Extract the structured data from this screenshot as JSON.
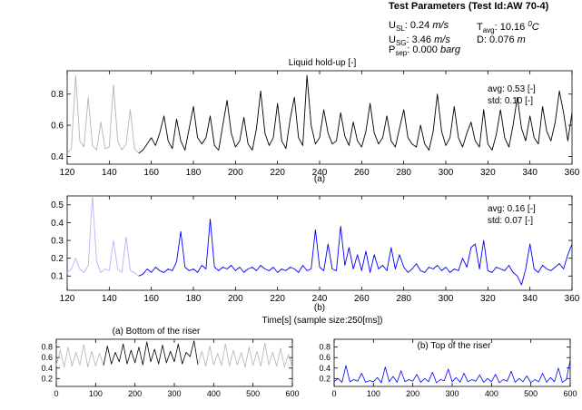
{
  "params": {
    "title": "Test Parameters (Test Id:AW 70-4)",
    "usl_label": "U",
    "usl_sub": "SL",
    "usl_value": ": 0.24",
    "usl_unit": "m/s",
    "usg_label": "U",
    "usg_sub": "SG",
    "usg_value": ": 3.46",
    "usg_unit": "m/s",
    "psep_label": "P",
    "psep_sub": "sep",
    "psep_value": ": 0.000",
    "psep_unit": "barg",
    "tavg_label": "T",
    "tavg_sub": "avg",
    "tavg_value": ": 10.16",
    "tavg_sup": "0",
    "tavg_unit": "C",
    "d_label": "D: 0.076",
    "d_unit": "m"
  },
  "xlabel_main": "Time[s] (sample size:250[ms])",
  "colors": {
    "black_series": "#000000",
    "blue_series": "#0000ff",
    "light_black": "#b4b4b4",
    "light_blue": "#b4b4ff"
  },
  "chart_data": [
    {
      "id": "a",
      "type": "line",
      "title": "Liquid hold-up [-]",
      "caption": "(a)",
      "xlim": [
        120,
        360
      ],
      "ylim": [
        0.35,
        0.95
      ],
      "xticks": [
        "120",
        "140",
        "160",
        "180",
        "200",
        "220",
        "240",
        "260",
        "280",
        "300",
        "320",
        "340",
        "360"
      ],
      "yticks": [
        "0.4",
        "0.6",
        "0.8"
      ],
      "stat_avg": "avg: 0.53 [-]",
      "stat_std": "std: 0.10 [-]",
      "grey_until": 155,
      "series": [
        {
          "x": [
            120,
            122,
            124,
            126,
            128,
            130,
            132,
            134,
            136,
            138,
            140,
            142,
            144,
            146,
            148,
            150,
            152,
            154,
            156,
            158,
            160,
            162,
            164,
            166,
            168,
            170,
            172,
            174,
            176,
            178,
            180,
            182,
            184,
            186,
            188,
            190,
            192,
            194,
            196,
            198,
            200,
            202,
            204,
            206,
            208,
            210,
            212,
            214,
            216,
            218,
            220,
            222,
            224,
            226,
            228,
            230,
            232,
            234,
            236,
            238,
            240,
            242,
            244,
            246,
            248,
            250,
            252,
            254,
            256,
            258,
            260,
            262,
            264,
            266,
            268,
            270,
            272,
            274,
            276,
            278,
            280,
            282,
            284,
            286,
            288,
            290,
            292,
            294,
            296,
            298,
            300,
            302,
            304,
            306,
            308,
            310,
            312,
            314,
            316,
            318,
            320,
            322,
            324,
            326,
            328,
            330,
            332,
            334,
            336,
            338,
            340,
            342,
            344,
            346,
            348,
            350,
            352,
            354,
            356,
            358,
            360
          ],
          "y": [
            0.42,
            0.45,
            0.92,
            0.5,
            0.46,
            0.78,
            0.47,
            0.44,
            0.62,
            0.45,
            0.46,
            0.86,
            0.5,
            0.44,
            0.48,
            0.7,
            0.45,
            0.42,
            0.44,
            0.48,
            0.52,
            0.47,
            0.55,
            0.66,
            0.5,
            0.45,
            0.64,
            0.5,
            0.44,
            0.58,
            0.72,
            0.52,
            0.48,
            0.52,
            0.66,
            0.47,
            0.44,
            0.6,
            0.76,
            0.55,
            0.46,
            0.5,
            0.65,
            0.48,
            0.44,
            0.58,
            0.82,
            0.55,
            0.47,
            0.52,
            0.74,
            0.5,
            0.45,
            0.64,
            0.78,
            0.52,
            0.47,
            0.92,
            0.6,
            0.48,
            0.52,
            0.7,
            0.55,
            0.48,
            0.5,
            0.68,
            0.53,
            0.47,
            0.62,
            0.5,
            0.46,
            0.56,
            0.74,
            0.55,
            0.48,
            0.52,
            0.66,
            0.5,
            0.46,
            0.58,
            0.7,
            0.52,
            0.48,
            0.46,
            0.6,
            0.48,
            0.44,
            0.56,
            0.8,
            0.56,
            0.47,
            0.52,
            0.72,
            0.52,
            0.46,
            0.55,
            0.62,
            0.5,
            0.46,
            0.7,
            0.48,
            0.44,
            0.54,
            0.7,
            0.52,
            0.46,
            0.6,
            0.78,
            0.58,
            0.5,
            0.66,
            0.52,
            0.48,
            0.72,
            0.56,
            0.5,
            0.62,
            0.82,
            0.68,
            0.5,
            0.68
          ]
        }
      ]
    },
    {
      "id": "b",
      "type": "line",
      "title": "",
      "caption": "(b)",
      "xlim": [
        120,
        360
      ],
      "ylim": [
        0.02,
        0.55
      ],
      "xticks": [
        "120",
        "140",
        "160",
        "180",
        "200",
        "220",
        "240",
        "260",
        "280",
        "300",
        "320",
        "340",
        "360"
      ],
      "yticks": [
        "0.1",
        "0.2",
        "0.3",
        "0.4",
        "0.5"
      ],
      "stat_avg": "avg: 0.16 [-]",
      "stat_std": "std: 0.07 [-]",
      "grey_until": 155,
      "series": [
        {
          "x": [
            120,
            122,
            124,
            126,
            128,
            130,
            132,
            134,
            136,
            138,
            140,
            142,
            144,
            146,
            148,
            150,
            152,
            154,
            156,
            158,
            160,
            162,
            164,
            166,
            168,
            170,
            172,
            174,
            176,
            178,
            180,
            182,
            184,
            186,
            188,
            190,
            192,
            194,
            196,
            198,
            200,
            202,
            204,
            206,
            208,
            210,
            212,
            214,
            216,
            218,
            220,
            222,
            224,
            226,
            228,
            230,
            232,
            234,
            236,
            238,
            240,
            242,
            244,
            246,
            248,
            250,
            252,
            254,
            256,
            258,
            260,
            262,
            264,
            266,
            268,
            270,
            272,
            274,
            276,
            278,
            280,
            282,
            284,
            286,
            288,
            290,
            292,
            294,
            296,
            298,
            300,
            302,
            304,
            306,
            308,
            310,
            312,
            314,
            316,
            318,
            320,
            322,
            324,
            326,
            328,
            330,
            332,
            334,
            336,
            338,
            340,
            342,
            344,
            346,
            348,
            350,
            352,
            354,
            356,
            358,
            360
          ],
          "y": [
            0.12,
            0.14,
            0.2,
            0.14,
            0.12,
            0.16,
            0.55,
            0.18,
            0.12,
            0.14,
            0.13,
            0.3,
            0.14,
            0.12,
            0.32,
            0.13,
            0.12,
            0.1,
            0.11,
            0.14,
            0.12,
            0.15,
            0.13,
            0.12,
            0.14,
            0.13,
            0.18,
            0.35,
            0.15,
            0.13,
            0.14,
            0.12,
            0.16,
            0.14,
            0.42,
            0.15,
            0.13,
            0.15,
            0.14,
            0.16,
            0.13,
            0.15,
            0.12,
            0.14,
            0.15,
            0.13,
            0.16,
            0.14,
            0.13,
            0.15,
            0.12,
            0.14,
            0.13,
            0.15,
            0.14,
            0.12,
            0.16,
            0.13,
            0.14,
            0.36,
            0.15,
            0.13,
            0.28,
            0.14,
            0.13,
            0.38,
            0.16,
            0.26,
            0.14,
            0.22,
            0.13,
            0.24,
            0.12,
            0.22,
            0.14,
            0.16,
            0.13,
            0.26,
            0.14,
            0.22,
            0.15,
            0.12,
            0.14,
            0.17,
            0.13,
            0.12,
            0.15,
            0.14,
            0.16,
            0.13,
            0.15,
            0.12,
            0.14,
            0.13,
            0.2,
            0.15,
            0.26,
            0.28,
            0.14,
            0.3,
            0.13,
            0.12,
            0.15,
            0.14,
            0.13,
            0.16,
            0.12,
            0.1,
            0.05,
            0.14,
            0.28,
            0.14,
            0.12,
            0.16,
            0.14,
            0.13,
            0.15,
            0.17,
            0.14,
            0.22,
            0.28
          ]
        }
      ]
    },
    {
      "id": "c",
      "type": "line",
      "title": "(a) Bottom of the riser",
      "caption": "",
      "xlim": [
        0,
        600
      ],
      "ylim": [
        0.05,
        0.95
      ],
      "xticks": [
        "0",
        "100",
        "200",
        "300",
        "400",
        "500",
        "600"
      ],
      "yticks": [
        "0.2",
        "0.4",
        "0.6",
        "0.8"
      ],
      "highlight": [
        120,
        360
      ],
      "series": [
        {
          "x": [
            0,
            10,
            20,
            30,
            40,
            50,
            60,
            70,
            80,
            90,
            100,
            110,
            120,
            130,
            140,
            150,
            160,
            170,
            180,
            190,
            200,
            210,
            220,
            230,
            240,
            250,
            260,
            270,
            280,
            290,
            300,
            310,
            320,
            330,
            340,
            350,
            360,
            370,
            380,
            390,
            400,
            410,
            420,
            430,
            440,
            450,
            460,
            470,
            480,
            490,
            500,
            510,
            520,
            530,
            540,
            550,
            560,
            570,
            580,
            590,
            600
          ],
          "y": [
            0.45,
            0.75,
            0.42,
            0.8,
            0.44,
            0.7,
            0.46,
            0.85,
            0.42,
            0.72,
            0.44,
            0.68,
            0.45,
            0.82,
            0.48,
            0.7,
            0.52,
            0.86,
            0.48,
            0.74,
            0.5,
            0.8,
            0.46,
            0.9,
            0.52,
            0.76,
            0.48,
            0.84,
            0.5,
            0.72,
            0.52,
            0.86,
            0.48,
            0.7,
            0.62,
            0.92,
            0.46,
            0.72,
            0.44,
            0.82,
            0.46,
            0.68,
            0.45,
            0.86,
            0.44,
            0.74,
            0.46,
            0.7,
            0.42,
            0.8,
            0.45,
            0.72,
            0.44,
            0.88,
            0.46,
            0.7,
            0.44,
            0.78,
            0.42,
            0.66,
            0.42
          ]
        }
      ]
    },
    {
      "id": "d",
      "type": "line",
      "title": "(b) Top of the riser",
      "caption": "",
      "xlim": [
        0,
        600
      ],
      "ylim": [
        0.05,
        0.95
      ],
      "xticks": [
        "0",
        "100",
        "200",
        "300",
        "400",
        "500",
        "600"
      ],
      "yticks": [
        "0.2",
        "0.4",
        "0.6",
        "0.8"
      ],
      "series": [
        {
          "x": [
            0,
            10,
            20,
            30,
            40,
            50,
            60,
            70,
            80,
            90,
            100,
            110,
            120,
            130,
            140,
            150,
            160,
            170,
            180,
            190,
            200,
            210,
            220,
            230,
            240,
            250,
            260,
            270,
            280,
            290,
            300,
            310,
            320,
            330,
            340,
            350,
            360,
            370,
            380,
            390,
            400,
            410,
            420,
            430,
            440,
            450,
            460,
            470,
            480,
            490,
            500,
            510,
            520,
            530,
            540,
            550,
            560,
            570,
            580,
            590,
            600
          ],
          "y": [
            0.14,
            0.2,
            0.13,
            0.45,
            0.14,
            0.18,
            0.15,
            0.3,
            0.13,
            0.16,
            0.14,
            0.22,
            0.12,
            0.42,
            0.14,
            0.24,
            0.13,
            0.35,
            0.14,
            0.18,
            0.15,
            0.28,
            0.13,
            0.2,
            0.14,
            0.32,
            0.12,
            0.18,
            0.16,
            0.38,
            0.14,
            0.22,
            0.13,
            0.3,
            0.14,
            0.18,
            0.15,
            0.27,
            0.13,
            0.2,
            0.14,
            0.28,
            0.12,
            0.18,
            0.15,
            0.34,
            0.13,
            0.2,
            0.14,
            0.25,
            0.12,
            0.18,
            0.14,
            0.3,
            0.13,
            0.22,
            0.14,
            0.4,
            0.13,
            0.18,
            0.55
          ]
        }
      ]
    }
  ]
}
